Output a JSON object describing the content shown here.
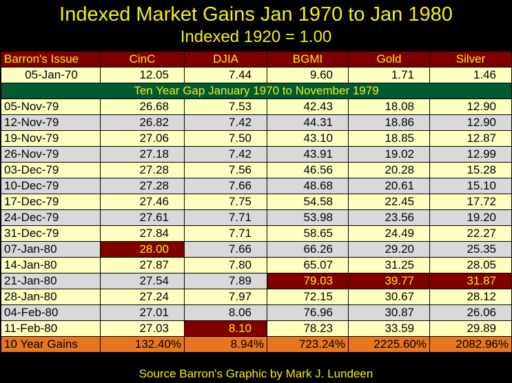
{
  "title": "Indexed Market Gains Jan 1970 to Jan 1980",
  "subtitle": "Indexed 1920 = 1.00",
  "headers": [
    "Barron's Issue",
    "CinC",
    "DJIA",
    "BGMI",
    "Gold",
    "Silver"
  ],
  "base_row": [
    "05-Jan-70",
    "12.05",
    "7.44",
    "9.60",
    "1.71",
    "1.46"
  ],
  "gap_label": "Ten Year Gap January 1970 to November 1979",
  "rows": [
    [
      "05-Nov-79",
      "26.68",
      "7.53",
      "42.43",
      "18.08",
      "12.90"
    ],
    [
      "12-Nov-79",
      "26.82",
      "7.42",
      "44.31",
      "18.86",
      "12.90"
    ],
    [
      "19-Nov-79",
      "27.06",
      "7.50",
      "43.10",
      "18.85",
      "12.87"
    ],
    [
      "26-Nov-79",
      "27.18",
      "7.42",
      "43.91",
      "19.02",
      "12.99"
    ],
    [
      "03-Dec-79",
      "27.28",
      "7.56",
      "46.56",
      "20.28",
      "15.28"
    ],
    [
      "10-Dec-79",
      "27.28",
      "7.66",
      "48.68",
      "20.61",
      "15.10"
    ],
    [
      "17-Dec-79",
      "27.46",
      "7.75",
      "54.58",
      "22.45",
      "17.72"
    ],
    [
      "24-Dec-79",
      "27.61",
      "7.71",
      "53.98",
      "23.56",
      "19.20"
    ],
    [
      "31-Dec-79",
      "27.84",
      "7.71",
      "58.65",
      "24.49",
      "22.27"
    ],
    [
      "07-Jan-80",
      "28.00",
      "7.66",
      "66.26",
      "29.20",
      "25.35"
    ],
    [
      "14-Jan-80",
      "27.87",
      "7.80",
      "65.07",
      "31.25",
      "28.05"
    ],
    [
      "21-Jan-80",
      "27.54",
      "7.89",
      "79.03",
      "39.77",
      "31.87"
    ],
    [
      "28-Jan-80",
      "27.24",
      "7.97",
      "72.15",
      "30.67",
      "28.12"
    ],
    [
      "04-Feb-80",
      "27.01",
      "8.06",
      "76.96",
      "30.87",
      "26.06"
    ],
    [
      "11-Feb-80",
      "27.03",
      "8.10",
      "78.23",
      "33.59",
      "29.89"
    ]
  ],
  "highlights": [
    [
      9,
      1
    ],
    [
      11,
      3
    ],
    [
      11,
      4
    ],
    [
      11,
      5
    ],
    [
      14,
      2
    ]
  ],
  "total_row": [
    "10 Year Gains",
    "132.40%",
    "8.94%",
    "723.24%",
    "2225.60%",
    "2082.96%"
  ],
  "source": "Source Barron's  Graphic by Mark J. Lundeen",
  "colors": {
    "title": "#f7ef16",
    "header_bg": "#800000",
    "row_light": "#ffffc0",
    "row_grey": "#d9d9d9",
    "gap_bg": "#005a32",
    "total_bg": "#e8761e",
    "highlight_bg": "#800000"
  }
}
